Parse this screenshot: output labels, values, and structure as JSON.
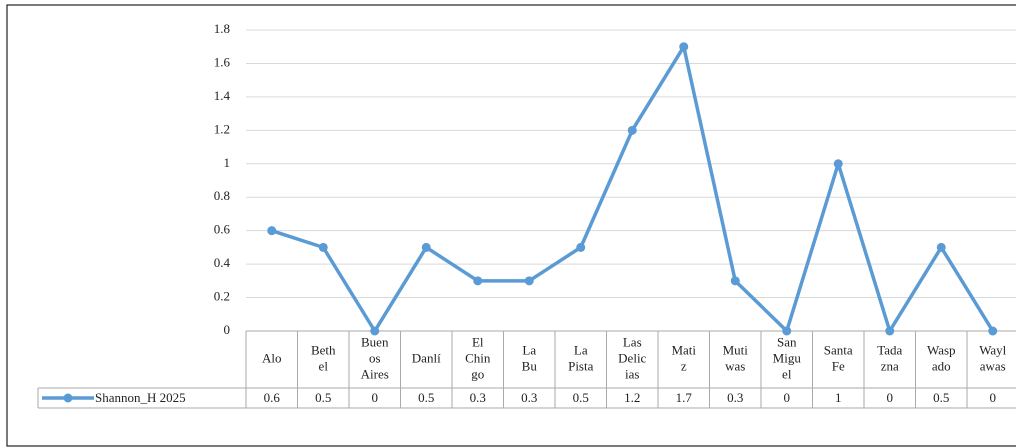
{
  "chart_data": {
    "type": "line",
    "categories": [
      "Alo",
      "Beth\nel",
      "Buen\nos\nAires",
      "Danlí",
      "El\nChin\ngo",
      "La\nBu",
      "La\nPista",
      "Las\nDelic\nias",
      "Mati\nz",
      "Muti\nwas",
      "San\nMigu\nel",
      "Santa\nFe",
      "Tada\nzna",
      "Wasp\nado",
      "Wayl\nawas"
    ],
    "series": [
      {
        "name": "Shannon_H 2025",
        "color": "#5b9bd5",
        "values": [
          0.6,
          0.5,
          0,
          0.5,
          0.3,
          0.3,
          0.5,
          1.2,
          1.7,
          0.3,
          0,
          1,
          0,
          0.5,
          0
        ]
      }
    ],
    "ylim": [
      0,
      1.8
    ],
    "yticks": [
      0,
      0.2,
      0.4,
      0.6,
      0.8,
      1,
      1.2,
      1.4,
      1.6,
      1.8
    ],
    "grid": true
  }
}
